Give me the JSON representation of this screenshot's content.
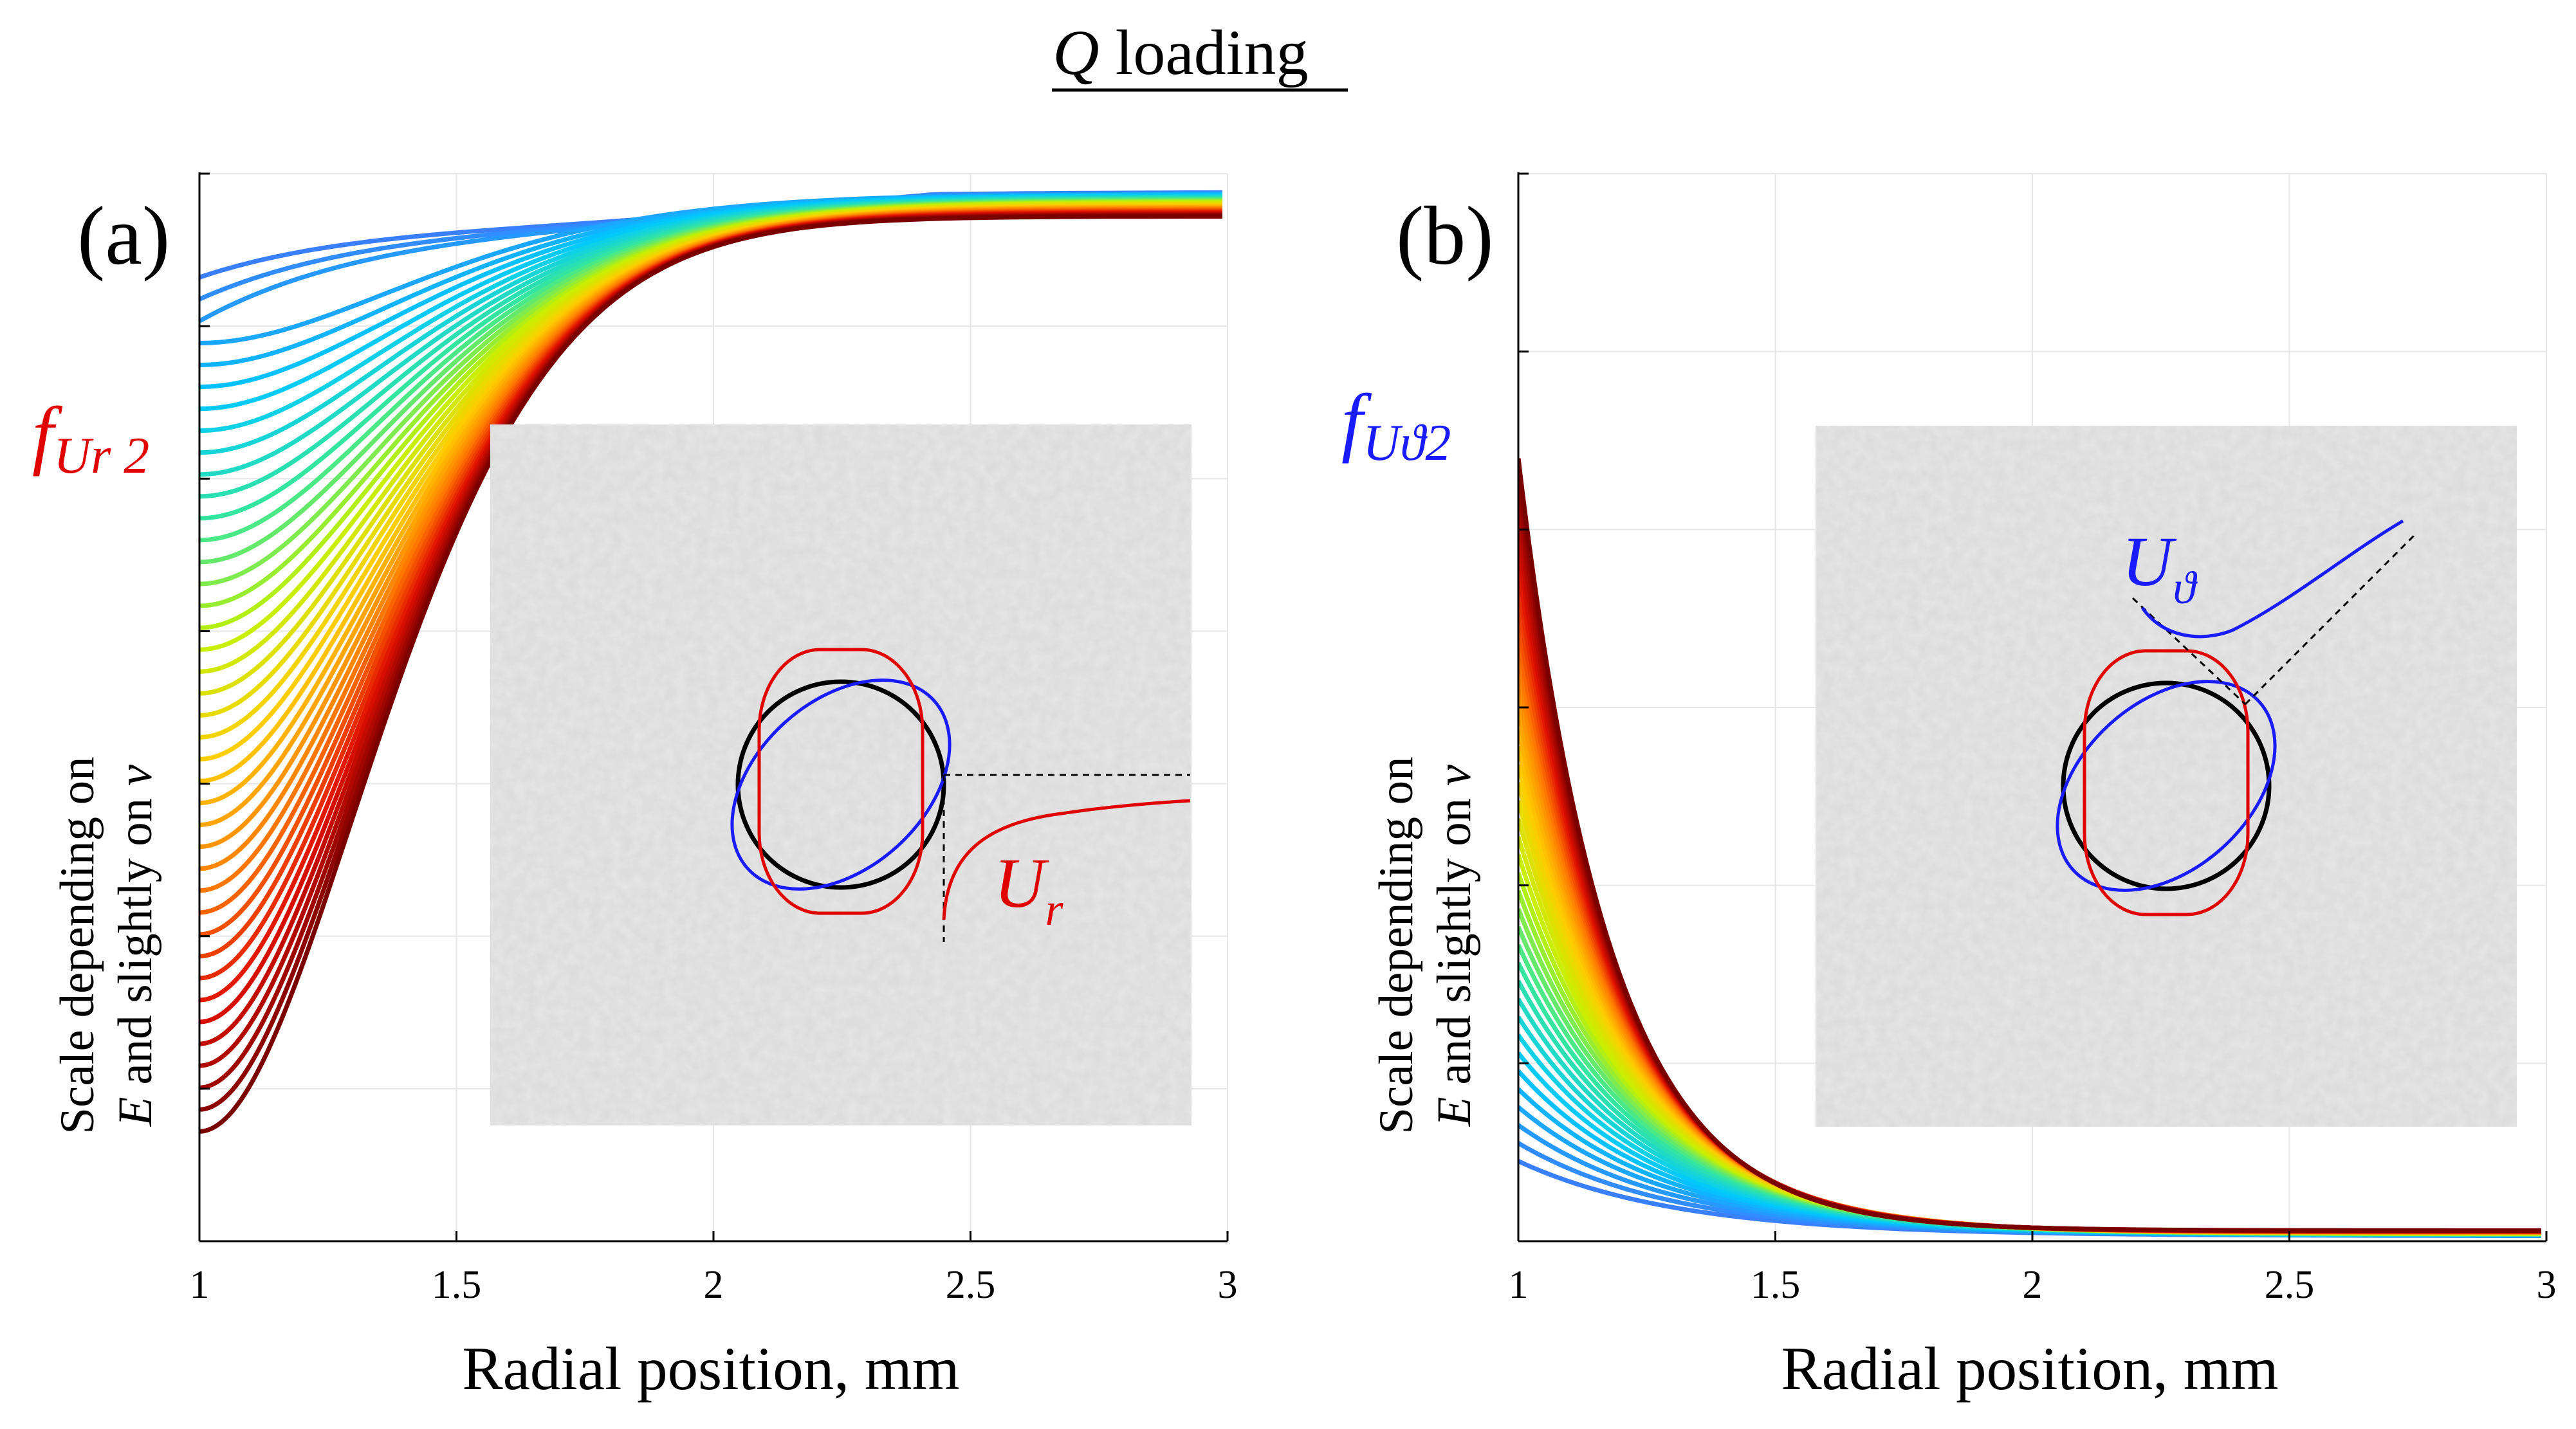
{
  "figure": {
    "title_italic": "Q",
    "title_rest": " loading"
  },
  "chart_data": [
    {
      "type": "line",
      "panel_label": "(a)",
      "function_label_main": "f",
      "function_label_sub": "Ur 2",
      "function_label_color": "#e00000",
      "xlabel": "Radial position, mm",
      "ylabel_line1": "Scale depending on",
      "ylabel_line2_italic_E": "E",
      "ylabel_line2_middle": " and slightly on ",
      "ylabel_line2_italic_nu": "ν",
      "xlim": [
        1,
        3
      ],
      "ylim": [
        0,
        7
      ],
      "xticks": [
        1,
        1.5,
        2,
        2.5,
        3
      ],
      "xtick_labels": [
        "1",
        "1.5",
        "2",
        "2.5",
        "3"
      ],
      "yticks": [
        0,
        1,
        2,
        3,
        4,
        5,
        6,
        7
      ],
      "grid": true,
      "curve_family": {
        "description": "family of curves, color mapped from blue (top) to dark red (bottom)",
        "count": 40,
        "asymptote": 6.8,
        "start_values_at_x1": {
          "first": 6.32,
          "last": 0.72
        },
        "end_values_at_x3": {
          "first": 6.88,
          "last": 6.72
        },
        "colors": [
          "#3a7fff",
          "#00c8ff",
          "#35e6a0",
          "#c6f000",
          "#ffcc00",
          "#ff7a00",
          "#e01000",
          "#7a0000"
        ]
      },
      "inset": {
        "curve_label_main": "U",
        "curve_label_sub": "r",
        "curve_label_color": "#e00000",
        "shapes": [
          "black-circle",
          "red-ellipse-vertical",
          "blue-ellipse-tilted"
        ]
      }
    },
    {
      "type": "line",
      "panel_label": "(b)",
      "function_label_main": "f",
      "function_label_sub": "Uϑ2",
      "function_label_color": "#1a1aff",
      "xlabel": "Radial position, mm",
      "ylabel_line1": "Scale depending on",
      "ylabel_line2_italic_E": "E",
      "ylabel_line2_middle": " and slightly on ",
      "ylabel_line2_italic_nu": "ν",
      "xlim": [
        1,
        3
      ],
      "ylim": [
        0,
        6
      ],
      "xticks": [
        1,
        1.5,
        2,
        2.5,
        3
      ],
      "xtick_labels": [
        "1",
        "1.5",
        "2",
        "2.5",
        "3"
      ],
      "yticks": [
        0,
        1,
        2,
        3,
        4,
        5,
        6
      ],
      "grid": true,
      "curve_family": {
        "description": "family of decaying curves, color mapped from dark red (top) to blue (bottom)",
        "count": 40,
        "start_values_at_x1": {
          "first": 0.45,
          "last": 4.4
        },
        "end_values_at_x3": {
          "first": 0.03,
          "last": 0.06
        },
        "colors": [
          "#3a7fff",
          "#00c8ff",
          "#35e6a0",
          "#c6f000",
          "#ffcc00",
          "#ff7a00",
          "#e01000",
          "#7a0000"
        ]
      },
      "inset": {
        "curve_label_main": "U",
        "curve_label_sub": "ϑ",
        "curve_label_color": "#1a1aff",
        "shapes": [
          "black-circle",
          "red-ellipse-vertical",
          "blue-ellipse-tilted"
        ]
      }
    }
  ]
}
